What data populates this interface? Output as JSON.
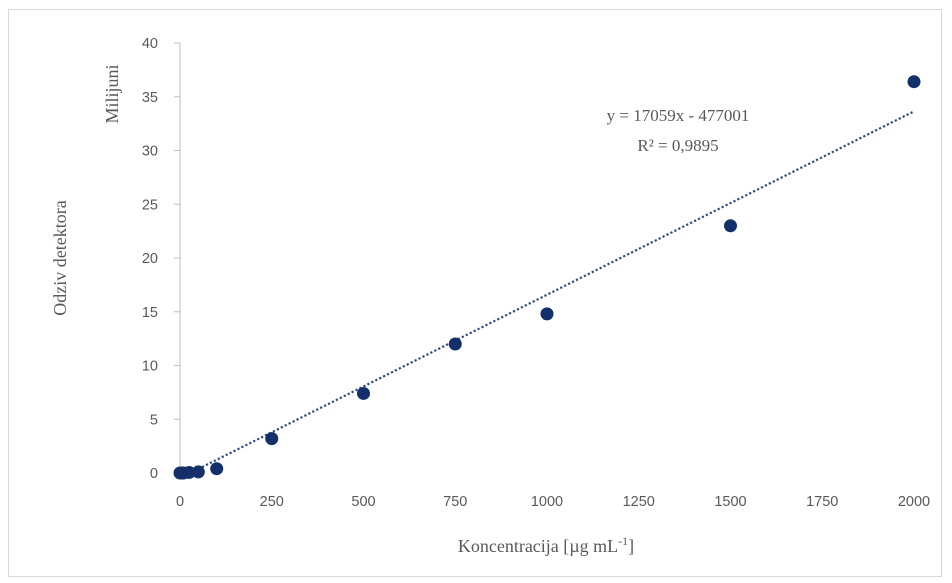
{
  "chart_data": {
    "type": "scatter",
    "xlabel": "Koncentracija [µg mL",
    "xlabel_sup": "-1",
    "xlabel_end": "]",
    "ylabel": "Odziv detektora",
    "y_unit_label": "Milijuni",
    "xlim": [
      0,
      2000
    ],
    "ylim": [
      0,
      40
    ],
    "x_ticks": [
      "0",
      "250",
      "500",
      "750",
      "1000",
      "1250",
      "1500",
      "1750",
      "2000"
    ],
    "y_ticks": [
      "0",
      "5",
      "10",
      "15",
      "20",
      "25",
      "30",
      "35",
      "40"
    ],
    "grid": false,
    "legend": "none",
    "series": [
      {
        "x": [
          0,
          5,
          10,
          25,
          50,
          100,
          250,
          500,
          750,
          1000,
          1500,
          2000
        ],
        "y": [
          0.0,
          0.0,
          0.0,
          0.05,
          0.1,
          0.4,
          3.2,
          7.4,
          12.0,
          14.8,
          23.0,
          36.4
        ],
        "color": "#13306b"
      }
    ],
    "trendline": {
      "type": "linear",
      "slope": 17059,
      "intercept": -477001,
      "y_scale": 1000000,
      "color": "#2e4b86",
      "style": "dotted",
      "equation": "y = 17059x  - 477001",
      "r2": "R² = 0,9895"
    }
  }
}
